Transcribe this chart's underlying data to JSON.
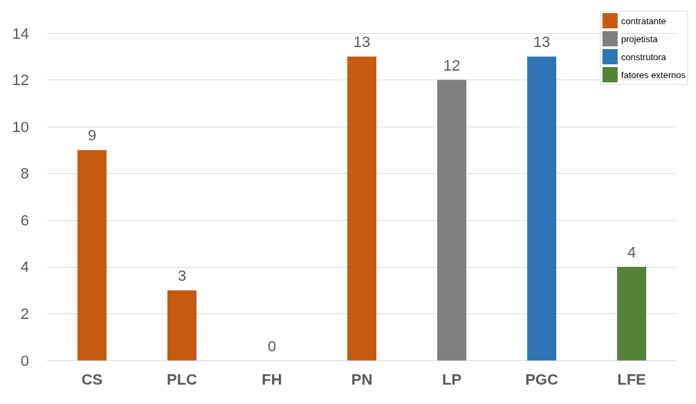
{
  "chart_data": {
    "type": "bar",
    "categories": [
      "CS",
      "PLC",
      "FH",
      "PN",
      "LP",
      "PGC",
      "LFE"
    ],
    "stacked": true,
    "series": [
      {
        "name": "contratante",
        "color": "#c55a11",
        "values": [
          9,
          3,
          0,
          13,
          null,
          null,
          null
        ]
      },
      {
        "name": "projetista",
        "color": "#7f7f7f",
        "values": [
          null,
          null,
          null,
          null,
          12,
          null,
          null
        ]
      },
      {
        "name": "construtora",
        "color": "#2e75b6",
        "values": [
          null,
          null,
          null,
          null,
          null,
          13,
          null
        ]
      },
      {
        "name": "fatores externos",
        "color": "#548235",
        "values": [
          null,
          null,
          null,
          null,
          null,
          null,
          4
        ]
      }
    ],
    "ylim": [
      0,
      14
    ],
    "yticks": [
      0,
      2,
      4,
      6,
      8,
      10,
      12,
      14
    ],
    "grid": "y",
    "legend": "top right",
    "data_labels": true
  }
}
